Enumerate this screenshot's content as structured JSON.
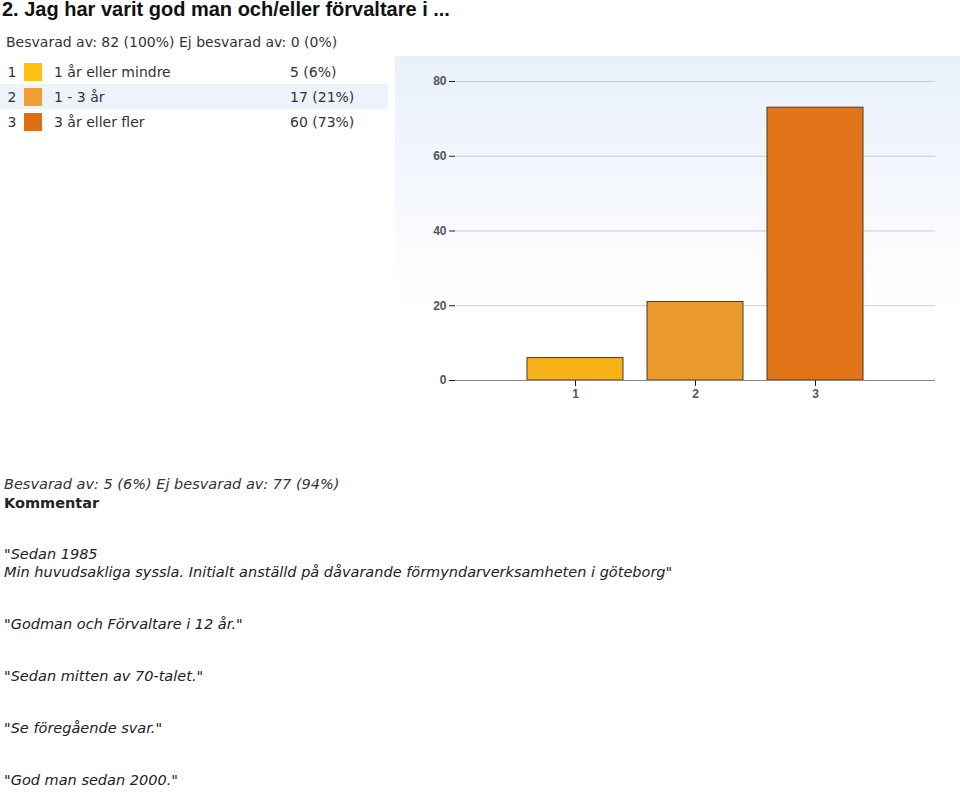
{
  "chart_data": {
    "type": "bar",
    "title": "2. Jag har varit god man och/eller förvaltare i ...",
    "subtitle": "Besvarad av: 82 (100%) Ej besvarad av: 0 (0%)",
    "categories": [
      "1",
      "2",
      "3"
    ],
    "values": [
      6,
      21,
      73
    ],
    "colors": [
      "#f7b21a",
      "#eb9a2e",
      "#e2741a"
    ],
    "ylim": [
      0,
      80
    ],
    "yticks": [
      0,
      20,
      40,
      60,
      80
    ],
    "grid": true
  },
  "summary_table": [
    {
      "number": "1",
      "color": "#ffc20e",
      "label": "1 år eller mindre",
      "count": "5 (6%)"
    },
    {
      "number": "2",
      "color": "#f0a032",
      "label": "1 - 3 år",
      "count": "17 (21%)"
    },
    {
      "number": "3",
      "color": "#e06e12",
      "label": "3 år eller fler",
      "count": "60 (73%)"
    }
  ],
  "comments_section": {
    "answered": "Besvarad av: 5 (6%) Ej besvarad av: 77 (94%)",
    "heading": "Kommentar",
    "comments": [
      "\"Sedan 1985\nMin huvudsakliga syssla. Initialt anställd på dåvarande förmyndarverksamheten i göteborg\"",
      "\"Godman och Förvaltare i 12 år.\"",
      "\"Sedan mitten av 70-talet.\"",
      "\"Se föregående svar.\"",
      "\"God man sedan 2000.\""
    ]
  }
}
